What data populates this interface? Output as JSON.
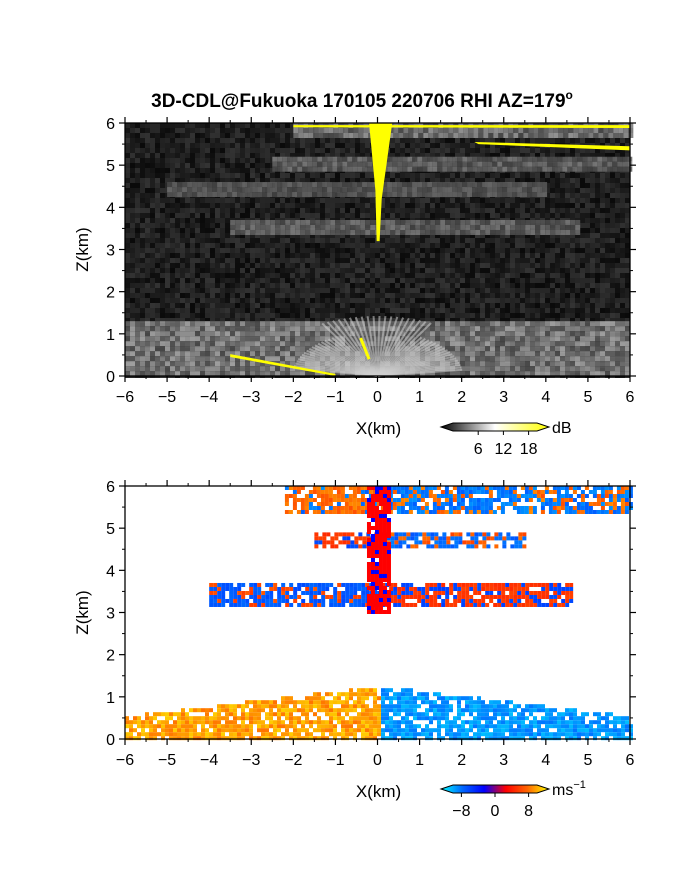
{
  "title": "3D-CDL@Fukuoka 170105 220706 RHI AZ=179",
  "title_suffix": "o",
  "chart_data": [
    {
      "type": "heatmap",
      "field": "reflectivity",
      "xlabel": "X(km)",
      "ylabel": "Z(km)",
      "xlim": [
        -6,
        6
      ],
      "ylim": [
        0,
        6
      ],
      "xticks": [
        "-6",
        "-5",
        "-4",
        "-3",
        "-2",
        "-1",
        "0",
        "1",
        "2",
        "3",
        "4",
        "5",
        "6"
      ],
      "yticks": [
        "0",
        "1",
        "2",
        "3",
        "4",
        "5",
        "6"
      ],
      "colorbar": {
        "unit": "dB",
        "ticks": [
          "6",
          "12",
          "18"
        ],
        "tick_values": [
          6,
          12,
          18
        ],
        "range": [
          0,
          20
        ],
        "palette": [
          "#000000",
          "#ffffff",
          "#ffff00"
        ]
      },
      "layers": [
        {
          "z_base": 5.75,
          "z_top": 6.0,
          "x_from": -2.0,
          "x_to": 6.0,
          "intensity": 0.45
        },
        {
          "z_base": 4.9,
          "z_top": 5.2,
          "x_from": -2.5,
          "x_to": 6.0,
          "intensity": 0.3
        },
        {
          "z_base": 4.3,
          "z_top": 4.6,
          "x_from": -5.0,
          "x_to": 4.0,
          "intensity": 0.22
        },
        {
          "z_base": 3.35,
          "z_top": 3.7,
          "x_from": -3.5,
          "x_to": 4.7,
          "intensity": 0.3
        },
        {
          "z_base": 0.0,
          "z_top": 1.3,
          "x_from": -6.0,
          "x_to": 6.0,
          "intensity": 0.5
        }
      ]
    },
    {
      "type": "heatmap",
      "field": "doppler-velocity",
      "xlabel": "X(km)",
      "ylabel": "Z(km)",
      "xlim": [
        -6,
        6
      ],
      "ylim": [
        0,
        6
      ],
      "xticks": [
        "-6",
        "-5",
        "-4",
        "-3",
        "-2",
        "-1",
        "0",
        "1",
        "2",
        "3",
        "4",
        "5",
        "6"
      ],
      "yticks": [
        "0",
        "1",
        "2",
        "3",
        "4",
        "5",
        "6"
      ],
      "colorbar": {
        "unit": "ms",
        "unit_exp": "-1",
        "ticks": [
          "-8",
          "0",
          "8"
        ],
        "tick_values": [
          -8,
          0,
          8
        ],
        "range": [
          -10,
          10
        ],
        "palette": [
          "#00ffff",
          "#0066ff",
          "#0000ff",
          "#ff0000",
          "#ff6600",
          "#ffff00"
        ]
      },
      "layers": [
        {
          "z_base": 5.4,
          "z_top": 6.0,
          "x_from": -2.2,
          "x_to": 6.0,
          "v_left": 5,
          "v_right": -5
        },
        {
          "z_base": 4.6,
          "z_top": 4.9,
          "x_from": -1.5,
          "x_to": 3.5,
          "v_left": 2,
          "v_right": -4
        },
        {
          "z_base": 3.2,
          "z_top": 3.7,
          "x_from": -4.0,
          "x_to": 4.6,
          "v_left": -3,
          "v_right": 2
        },
        {
          "z_base": 0.0,
          "z_top": 1.3,
          "x_from": -6.0,
          "x_to": 6.0,
          "v_left": 8,
          "v_right": -7
        }
      ]
    }
  ]
}
